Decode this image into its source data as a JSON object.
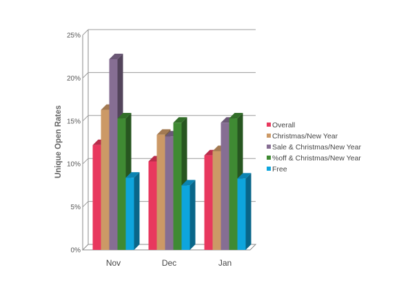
{
  "chart_data": {
    "type": "bar",
    "title": "",
    "xlabel": "",
    "ylabel": "Unique Open Rates",
    "ylim": [
      0,
      25
    ],
    "yticks": [
      "0%",
      "5%",
      "10%",
      "15%",
      "20%",
      "25%"
    ],
    "grid": true,
    "legend_position": "right",
    "categories": [
      "Nov",
      "Dec",
      "Jan"
    ],
    "series": [
      {
        "name": "Overall",
        "color": "#e8385e",
        "values": [
          12.2,
          10.3,
          11.0
        ]
      },
      {
        "name": "Christmas/New Year",
        "color": "#cc9966",
        "values": [
          16.3,
          13.4,
          11.5
        ]
      },
      {
        "name": "Sale & Christmas/New Year",
        "color": "#866e93",
        "values": [
          22.2,
          13.2,
          14.8
        ]
      },
      {
        "name": "%off & Christmas/New Year",
        "color": "#3f8a33",
        "values": [
          15.3,
          14.8,
          15.3
        ]
      },
      {
        "name": "Free",
        "color": "#0ea5dd",
        "values": [
          8.4,
          7.5,
          8.3
        ]
      }
    ]
  }
}
